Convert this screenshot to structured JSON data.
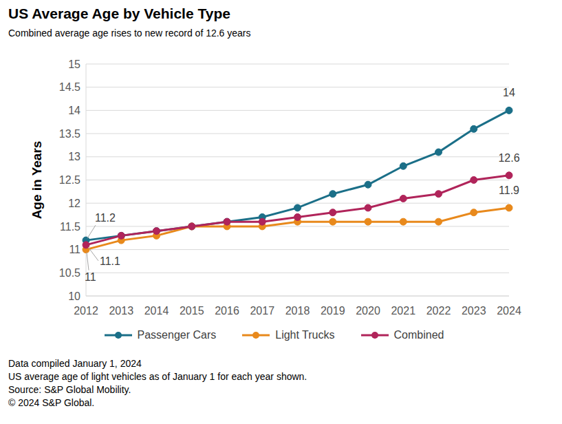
{
  "chart_data": {
    "type": "line",
    "title": "US Average Age by Vehicle Type",
    "subtitle": "Combined average age rises to new record of 12.6 years",
    "y_label": "Age in Years",
    "categories": [
      "2012",
      "2013",
      "2014",
      "2015",
      "2016",
      "2017",
      "2018",
      "2019",
      "2020",
      "2021",
      "2022",
      "2023",
      "2024"
    ],
    "series": [
      {
        "name": "Passenger Cars",
        "color": "#1b6f88",
        "marker": "circle",
        "values": [
          11.2,
          11.3,
          11.4,
          11.5,
          11.6,
          11.7,
          11.9,
          12.2,
          12.4,
          12.8,
          13.1,
          13.6,
          14.0
        ]
      },
      {
        "name": "Light Trucks",
        "color": "#e8891c",
        "marker": "circle",
        "values": [
          11.0,
          11.2,
          11.3,
          11.5,
          11.5,
          11.5,
          11.6,
          11.6,
          11.6,
          11.6,
          11.6,
          11.8,
          11.9
        ]
      },
      {
        "name": "Combined",
        "color": "#b0245a",
        "marker": "circle",
        "values": [
          11.1,
          11.3,
          11.4,
          11.5,
          11.6,
          11.6,
          11.7,
          11.8,
          11.9,
          12.1,
          12.2,
          12.5,
          12.6
        ]
      }
    ],
    "ylim": [
      10,
      15
    ],
    "yticks": [
      10,
      10.5,
      11,
      11.5,
      12,
      12.5,
      13,
      13.5,
      14,
      14.5,
      15
    ],
    "grid": true,
    "legend": "bottom",
    "annotations": [
      {
        "series": "Passenger Cars",
        "x": "2024",
        "text": "14"
      },
      {
        "series": "Combined",
        "x": "2024",
        "text": "12.6"
      },
      {
        "series": "Light Trucks",
        "x": "2024",
        "text": "11.9"
      },
      {
        "series": "Passenger Cars",
        "x": "2012",
        "text": "11.2"
      },
      {
        "series": "Combined",
        "x": "2012",
        "text": "11.1"
      },
      {
        "series": "Light Trucks",
        "x": "2012",
        "text": "11"
      }
    ],
    "notes": [
      "Data compiled January 1, 2024",
      "US average age of light vehicles as of January 1 for each year shown.",
      "Source: S&P Global Mobility.",
      "© 2024 S&P Global."
    ]
  }
}
